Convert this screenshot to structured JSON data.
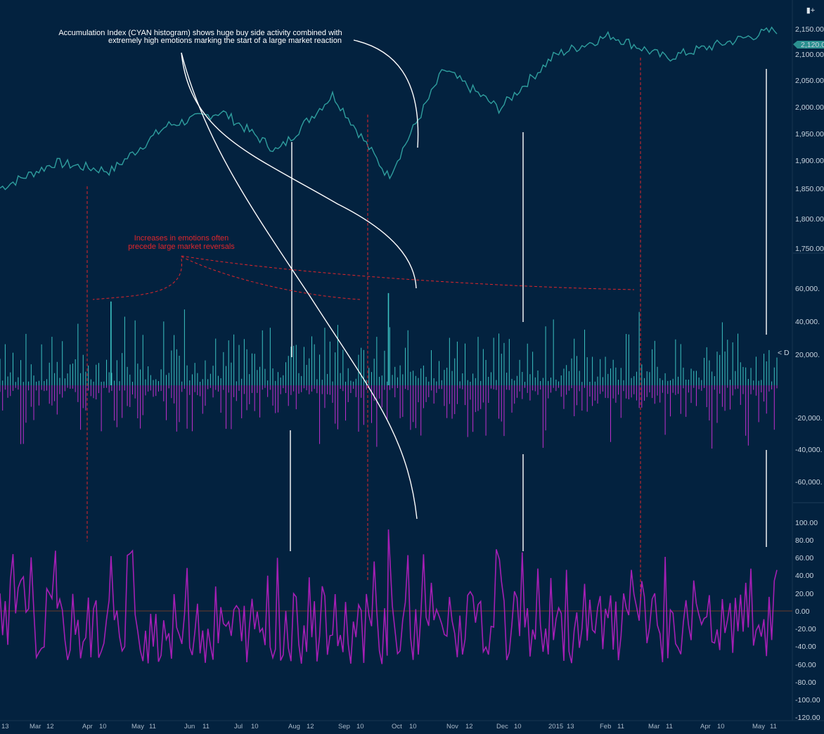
{
  "colors": {
    "background": "#03223f",
    "price": "#2f9e9e",
    "cyan_histogram": "#3cc2c2",
    "magenta_histogram": "#c02fd0",
    "oscillator": "#a41fb4",
    "annotation_white": "#ffffff",
    "annotation_red": "#e0262c",
    "panel_divider": "#1d3c5a",
    "last_price_tag": "#2b8f8f"
  },
  "toolbar": {
    "corner_icon": "expand-icon",
    "corner_label": "▮+"
  },
  "annotations": {
    "top_line1": "Accumulation Index (CYAN histogram) shows huge buy side activity combined with",
    "top_line2": "extremely high emotions marking the start of a large market reaction",
    "red_line1": "Increases in emotions often",
    "red_line2": "precede large market reversals"
  },
  "price_tag": "2,120.0",
  "histogram_tag": "< D",
  "chart_data": [
    {
      "type": "line",
      "panel": "price",
      "x": [
        "Mar 12",
        "Apr 10",
        "May 11",
        "Jun 11",
        "Jul 10",
        "Aug 12",
        "Sep 10",
        "Oct 10",
        "Nov 12",
        "Dec 10",
        "2015 13",
        "Feb 11",
        "Mar 11",
        "Apr 10",
        "May 11"
      ],
      "series": [
        {
          "values": [
            1840,
            1885,
            1870,
            1950,
            1975,
            1905,
            2005,
            1860,
            2050,
            1980,
            2075,
            2110,
            2070,
            2095,
            2120
          ]
        }
      ],
      "y_ticks": [
        "2,150.00",
        "2,100.00",
        "2,050.00",
        "2,000.00",
        "1,950.00",
        "1,900.00",
        "1,850.00",
        "1,800.00",
        "1,750.00"
      ],
      "ylim": [
        1725,
        2160
      ]
    },
    {
      "type": "bar",
      "panel": "accumulation_index",
      "y_ticks": [
        "60,000.",
        "40,000.",
        "20,000.",
        "-20,000.",
        "-40,000.",
        "-60,000."
      ],
      "ylim": [
        -75000,
        65000
      ],
      "notable_highs": [
        {
          "x": "Oct 10",
          "value": 55000
        },
        {
          "x": "May 11",
          "value": 50000
        }
      ]
    },
    {
      "type": "line",
      "panel": "emotion_oscillator",
      "y_ticks": [
        "100.00",
        "80.00",
        "60.00",
        "40.00",
        "20.00",
        "0.00",
        "-20.00",
        "-40.00",
        "-60.00",
        "-80.00",
        "-100.00",
        "-120.00"
      ],
      "ylim": [
        -122,
        105
      ],
      "notable_highs": [
        {
          "x": "Apr 10",
          "value": 68
        },
        {
          "x": "Aug 12",
          "value": 60
        },
        {
          "x": "Oct 10",
          "value": 92
        },
        {
          "x": "Dec 10",
          "value": 58
        },
        {
          "x": "May 11",
          "value": 62
        }
      ]
    }
  ],
  "x_axis": {
    "labels": [
      "13",
      "Mar",
      "12",
      "Apr",
      "10",
      "May",
      "11",
      "Jun",
      "11",
      "Jul",
      "10",
      "Aug",
      "12",
      "Sep",
      "10",
      "Oct",
      "10",
      "Nov",
      "12",
      "Dec",
      "10",
      "2015",
      "13",
      "Feb",
      "11",
      "Mar",
      "11",
      "Apr",
      "10",
      "May",
      "11"
    ]
  }
}
